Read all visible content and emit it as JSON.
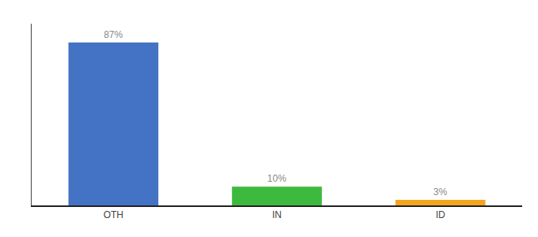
{
  "chart_data": {
    "type": "bar",
    "categories": [
      "OTH",
      "IN",
      "ID"
    ],
    "values": [
      87,
      10,
      3
    ],
    "value_labels": [
      "87%",
      "10%",
      "3%"
    ],
    "data_labels": true,
    "colors": [
      "#4472c4",
      "#3dba3d",
      "#f4a520"
    ],
    "ylim": [
      0,
      97
    ],
    "grid": false,
    "tick_labels": "x"
  }
}
